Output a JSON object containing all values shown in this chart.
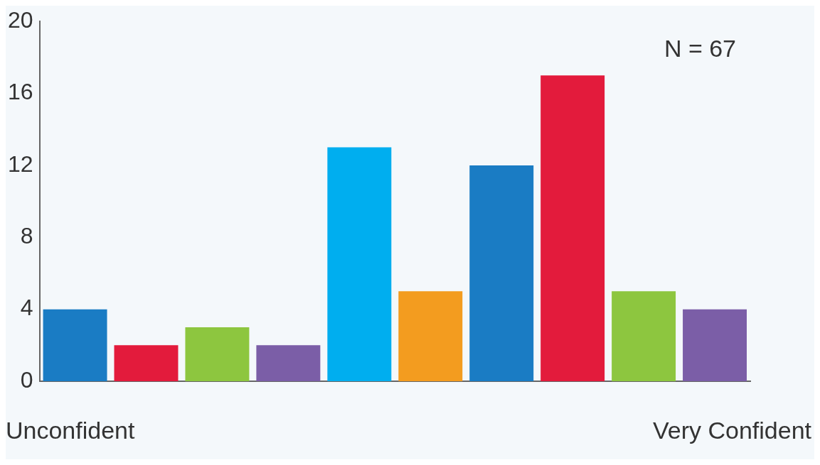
{
  "chart_data": {
    "type": "bar",
    "categories": [
      null,
      null,
      null,
      null,
      null,
      null,
      null,
      null,
      null,
      null
    ],
    "values": [
      4,
      2,
      3,
      2,
      13,
      5,
      12,
      17,
      5,
      4
    ],
    "colors": [
      "#1a7cc4",
      "#e31b3c",
      "#8dc63f",
      "#7b5ea7",
      "#00aeef",
      "#f39c1f",
      "#1a7cc4",
      "#e31b3c",
      "#8dc63f",
      "#7b5ea7"
    ],
    "ylim": [
      0,
      20
    ],
    "yticks": [
      0,
      4,
      8,
      12,
      16,
      20
    ],
    "grid": false,
    "legend": false,
    "tick_labels": "y",
    "annotations": [
      "N = 67",
      "Unconfident",
      "Very Confident"
    ]
  }
}
